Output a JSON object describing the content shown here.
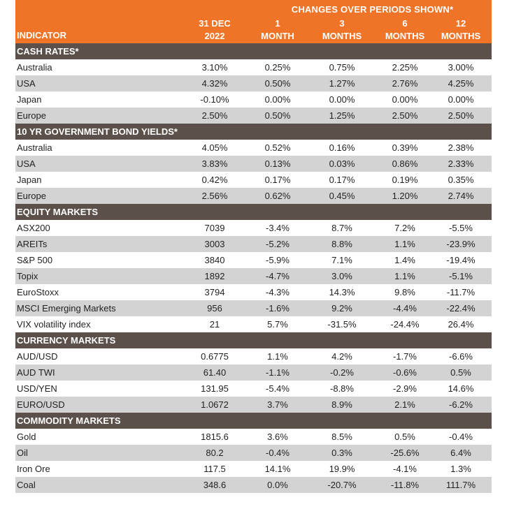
{
  "header": {
    "span_label": "CHANGES OVER PERIODS SHOWN*",
    "indicator_label": "INDICATOR",
    "columns": [
      {
        "line1": "31 DEC",
        "line2": "2022"
      },
      {
        "line1": "1",
        "line2": "MONTH"
      },
      {
        "line1": "3",
        "line2": "MONTHS"
      },
      {
        "line1": "6",
        "line2": "MONTHS"
      },
      {
        "line1": "12",
        "line2": "MONTHS"
      }
    ]
  },
  "sections": [
    {
      "title": "CASH RATES*",
      "rows": [
        {
          "name": "Australia",
          "values": [
            "3.10%",
            "0.25%",
            "0.75%",
            "2.25%",
            "3.00%"
          ]
        },
        {
          "name": "USA",
          "values": [
            "4.32%",
            "0.50%",
            "1.27%",
            "2.76%",
            "4.25%"
          ]
        },
        {
          "name": "Japan",
          "values": [
            "-0.10%",
            "0.00%",
            "0.00%",
            "0.00%",
            "0.00%"
          ]
        },
        {
          "name": "Europe",
          "values": [
            "2.50%",
            "0.50%",
            "1.25%",
            "2.50%",
            "2.50%"
          ]
        }
      ]
    },
    {
      "title": "10 YR GOVERNMENT BOND YIELDS*",
      "rows": [
        {
          "name": "Australia",
          "values": [
            "4.05%",
            "0.52%",
            "0.16%",
            "0.39%",
            "2.38%"
          ]
        },
        {
          "name": "USA",
          "values": [
            "3.83%",
            "0.13%",
            "0.03%",
            "0.86%",
            "2.33%"
          ]
        },
        {
          "name": "Japan",
          "values": [
            "0.42%",
            "0.17%",
            "0.17%",
            "0.19%",
            "0.35%"
          ]
        },
        {
          "name": "Europe",
          "values": [
            "2.56%",
            "0.62%",
            "0.45%",
            "1.20%",
            "2.74%"
          ]
        }
      ]
    },
    {
      "title": "EQUITY MARKETS",
      "rows": [
        {
          "name": "ASX200",
          "values": [
            "7039",
            "-3.4%",
            "8.7%",
            "7.2%",
            "-5.5%"
          ]
        },
        {
          "name": "AREITs",
          "values": [
            "3003",
            "-5.2%",
            "8.8%",
            "1.1%",
            "-23.9%"
          ]
        },
        {
          "name": "S&P 500",
          "values": [
            "3840",
            "-5.9%",
            "7.1%",
            "1.4%",
            "-19.4%"
          ]
        },
        {
          "name": "Topix",
          "values": [
            "1892",
            "-4.7%",
            "3.0%",
            "1.1%",
            "-5.1%"
          ]
        },
        {
          "name": "EuroStoxx",
          "values": [
            "3794",
            "-4.3%",
            "14.3%",
            "9.8%",
            "-11.7%"
          ]
        },
        {
          "name": "MSCI Emerging Markets",
          "values": [
            "956",
            "-1.6%",
            "9.2%",
            "-4.4%",
            "-22.4%"
          ]
        },
        {
          "name": "VIX volatility index",
          "values": [
            "21",
            "5.7%",
            "-31.5%",
            "-24.4%",
            "26.4%"
          ]
        }
      ]
    },
    {
      "title": "CURRENCY MARKETS",
      "rows": [
        {
          "name": "AUD/USD",
          "values": [
            "0.6775",
            "1.1%",
            "4.2%",
            "-1.7%",
            "-6.6%"
          ]
        },
        {
          "name": "AUD TWI",
          "values": [
            "61.40",
            "-1.1%",
            "-0.2%",
            "-0.6%",
            "0.5%"
          ]
        },
        {
          "name": "USD/YEN",
          "values": [
            "131.95",
            "-5.4%",
            "-8.8%",
            "-2.9%",
            "14.6%"
          ]
        },
        {
          "name": "EURO/USD",
          "values": [
            "1.0672",
            "3.7%",
            "8.9%",
            "2.1%",
            "-6.2%"
          ]
        }
      ]
    },
    {
      "title": "COMMODITY MARKETS",
      "rows": [
        {
          "name": "Gold",
          "values": [
            "1815.6",
            "3.6%",
            "8.5%",
            "0.5%",
            "-0.4%"
          ]
        },
        {
          "name": "Oil",
          "values": [
            "80.2",
            "-0.4%",
            "0.3%",
            "-25.6%",
            "6.4%"
          ]
        },
        {
          "name": "Iron Ore",
          "values": [
            "117.5",
            "14.1%",
            "19.9%",
            "-4.1%",
            "1.3%"
          ]
        },
        {
          "name": "Coal",
          "values": [
            "348.6",
            "0.0%",
            "-20.7%",
            "-11.8%",
            "111.7%"
          ]
        }
      ]
    }
  ]
}
